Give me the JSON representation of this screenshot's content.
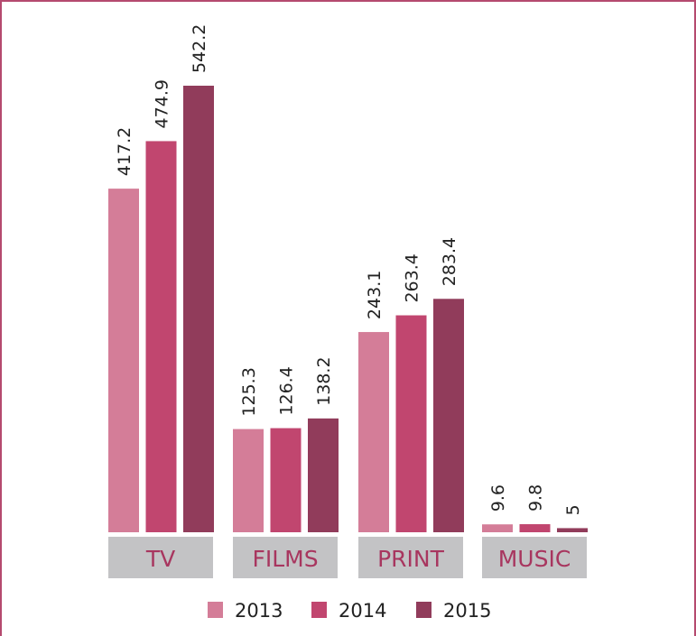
{
  "chart_data": {
    "type": "bar",
    "categories": [
      "TV",
      "FILMS",
      "PRINT",
      "MUSIC"
    ],
    "series": [
      {
        "name": "2013",
        "values": [
          417.2,
          125.3,
          243.1,
          9.6
        ],
        "color": "#d47d98"
      },
      {
        "name": "2014",
        "values": [
          474.9,
          126.4,
          263.4,
          9.8
        ],
        "color": "#c1466f"
      },
      {
        "name": "2015",
        "values": [
          542.2,
          138.2,
          283.4,
          5
        ],
        "color": "#913c5b"
      }
    ],
    "title": "",
    "xlabel": "",
    "ylabel": "",
    "ylim": [
      0,
      542.2
    ],
    "grid": false,
    "legend_position": "bottom",
    "category_label_background": "#c3c3c5",
    "category_label_color": "#a8365f",
    "border_color": "#b54a6f"
  }
}
